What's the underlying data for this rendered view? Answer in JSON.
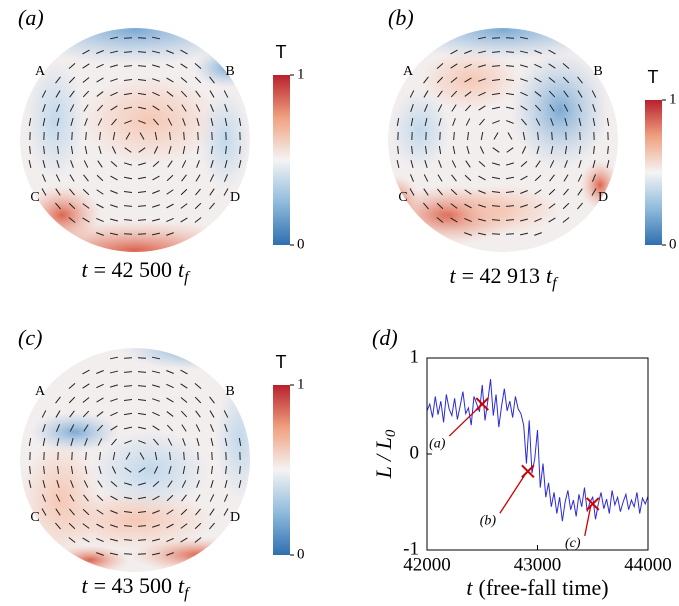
{
  "panels": [
    {
      "label": "(a)",
      "time": {
        "var": "t",
        "eq": "= 42 500",
        "unit": "t",
        "sub": "f"
      },
      "corners": [
        "A",
        "B",
        "C",
        "D"
      ],
      "colorbar": {
        "title": "T",
        "ticks": [
          0,
          1
        ]
      }
    },
    {
      "label": "(b)",
      "time": {
        "var": "t",
        "eq": "= 42 913",
        "unit": "t",
        "sub": "f"
      },
      "corners": [
        "A",
        "B",
        "C",
        "D"
      ],
      "colorbar": {
        "title": "T",
        "ticks": [
          0,
          1
        ]
      }
    },
    {
      "label": "(c)",
      "time": {
        "var": "t",
        "eq": "= 43 500",
        "unit": "t",
        "sub": "f"
      },
      "corners": [
        "A",
        "B",
        "C",
        "D"
      ],
      "colorbar": {
        "title": "T",
        "ticks": [
          0,
          1
        ]
      }
    }
  ],
  "chart_data": {
    "type": "line",
    "label": "(d)",
    "x_label": {
      "var": "t",
      "text": "(free-fall time)"
    },
    "y_label": {
      "var": "L / L",
      "sub": "0"
    },
    "x": [
      42000,
      42025,
      42050,
      42075,
      42100,
      42125,
      42150,
      42175,
      42200,
      42225,
      42250,
      42275,
      42300,
      42325,
      42350,
      42375,
      42400,
      42425,
      42450,
      42475,
      42500,
      42525,
      42550,
      42575,
      42600,
      42625,
      42650,
      42675,
      42700,
      42725,
      42750,
      42775,
      42800,
      42825,
      42850,
      42875,
      42900,
      42925,
      42950,
      42975,
      43000,
      43025,
      43050,
      43075,
      43100,
      43125,
      43150,
      43175,
      43200,
      43225,
      43250,
      43275,
      43300,
      43325,
      43350,
      43375,
      43400,
      43425,
      43450,
      43475,
      43500,
      43525,
      43550,
      43575,
      43600,
      43625,
      43650,
      43675,
      43700,
      43725,
      43750,
      43775,
      43800,
      43825,
      43850,
      43875,
      43900,
      43925,
      43950,
      43975,
      44000
    ],
    "series": [
      {
        "color": "#2b2bd9",
        "values": [
          0.45,
          0.52,
          0.38,
          0.6,
          0.41,
          0.55,
          0.33,
          0.62,
          0.47,
          0.4,
          0.58,
          0.36,
          0.5,
          0.65,
          0.42,
          0.48,
          0.3,
          0.6,
          0.52,
          0.44,
          0.72,
          0.35,
          0.55,
          0.78,
          0.4,
          0.62,
          0.28,
          0.5,
          0.68,
          0.45,
          0.55,
          0.38,
          0.6,
          0.47,
          0.42,
          0.3,
          -0.1,
          0.35,
          -0.2,
          -0.05,
          0.25,
          -0.35,
          -0.1,
          -0.45,
          -0.3,
          -0.55,
          -0.4,
          -0.62,
          -0.45,
          -0.7,
          -0.5,
          -0.38,
          -0.58,
          -0.48,
          -0.65,
          -0.42,
          -0.55,
          -0.35,
          -0.6,
          -0.5,
          -0.45,
          -0.68,
          -0.52,
          -0.4,
          -0.57,
          -0.47,
          -0.62,
          -0.38,
          -0.53,
          -0.45,
          -0.6,
          -0.5,
          -0.42,
          -0.58,
          -0.48,
          -0.55,
          -0.4,
          -0.62,
          -0.46,
          -0.52,
          -0.44
        ]
      }
    ],
    "annotations": [
      {
        "label": "(a)",
        "x": 42500,
        "y": 0.52
      },
      {
        "label": "(b)",
        "x": 42913,
        "y": -0.18
      },
      {
        "label": "(c)",
        "x": 43500,
        "y": -0.52
      }
    ],
    "marker_color": "#cc0000",
    "xlim": [
      42000,
      44000
    ],
    "xticks": [
      42000,
      43000,
      44000
    ],
    "ylim": [
      -1,
      1
    ],
    "yticks": [
      -1,
      0,
      1
    ]
  }
}
